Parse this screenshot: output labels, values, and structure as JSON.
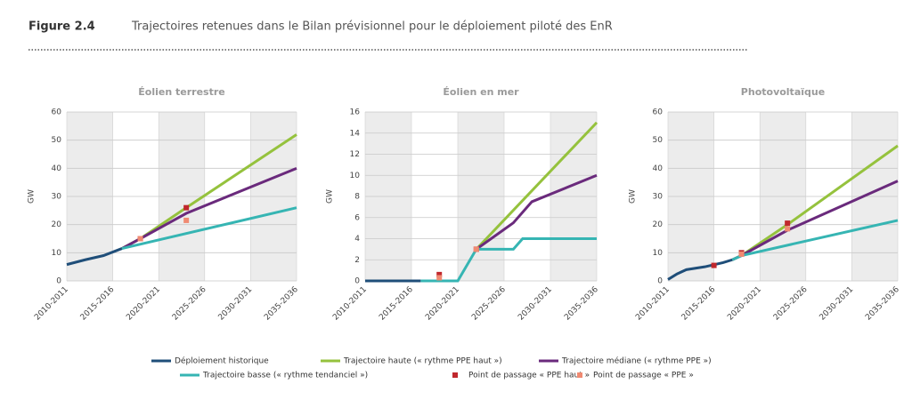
{
  "header": {
    "figure": "Figure 2.4",
    "title": "Trajectoires retenues dans le Bilan prévisionnel pour le déploiement piloté des EnR"
  },
  "chart_data": [
    {
      "type": "line",
      "title": "Éolien terrestre",
      "ylabel": "GW",
      "xlim": [
        2010,
        2035
      ],
      "ylim": [
        0,
        60
      ],
      "yticks": [
        0,
        10,
        20,
        30,
        40,
        50,
        60
      ],
      "xticks": [
        {
          "value": 2010,
          "label": "2010-2011"
        },
        {
          "value": 2015,
          "label": "2015-2016"
        },
        {
          "value": 2020,
          "label": "2020-2021"
        },
        {
          "value": 2025,
          "label": "2025-2026"
        },
        {
          "value": 2030,
          "label": "2030-2031"
        },
        {
          "value": 2035,
          "label": "2035-2036"
        }
      ],
      "series": [
        {
          "name": "Déploiement historique",
          "color": "#1f4e79",
          "type": "line",
          "x": [
            2010,
            2012,
            2014,
            2016
          ],
          "values": [
            5.8,
            7.5,
            9,
            11.5
          ]
        },
        {
          "name": "Trajectoire haute (« rythme PPE haut »)",
          "color": "#95c23d",
          "type": "line",
          "x": [
            2016,
            2018,
            2023,
            2035
          ],
          "values": [
            11.5,
            15,
            26,
            52
          ]
        },
        {
          "name": "Trajectoire médiane (« rythme PPE »)",
          "color": "#6a2a7c",
          "type": "line",
          "x": [
            2016,
            2018,
            2023,
            2035
          ],
          "values": [
            11.5,
            15,
            24,
            40
          ]
        },
        {
          "name": "Trajectoire basse (« rythme tendanciel »)",
          "color": "#36b5b3",
          "type": "line",
          "x": [
            2016,
            2035
          ],
          "values": [
            11.5,
            26
          ]
        },
        {
          "name": "Point de passage « PPE haut »",
          "color": "#c0282d",
          "type": "scatter",
          "x": [
            2018,
            2023
          ],
          "values": [
            15,
            26
          ]
        },
        {
          "name": "Point de passage « PPE »",
          "color": "#f08a72",
          "type": "scatter",
          "x": [
            2018,
            2023
          ],
          "values": [
            15,
            21.5
          ]
        }
      ]
    },
    {
      "type": "line",
      "title": "Éolien en mer",
      "ylabel": "GW",
      "xlim": [
        2010,
        2035
      ],
      "ylim": [
        0,
        16
      ],
      "yticks": [
        0,
        2,
        4,
        6,
        8,
        10,
        12,
        14,
        16
      ],
      "xticks": [
        {
          "value": 2010,
          "label": "2010-2011"
        },
        {
          "value": 2015,
          "label": "2015-2016"
        },
        {
          "value": 2020,
          "label": "2020-2021"
        },
        {
          "value": 2025,
          "label": "2025-2026"
        },
        {
          "value": 2030,
          "label": "2030-2031"
        },
        {
          "value": 2035,
          "label": "2035-2036"
        }
      ],
      "series": [
        {
          "x": [
            2010,
            2016
          ],
          "values": [
            0,
            0
          ]
        },
        {
          "x": [
            2022,
            2035
          ],
          "values": [
            3,
            15
          ]
        },
        {
          "x": [
            2022,
            2026,
            2028,
            2035
          ],
          "values": [
            3,
            5.5,
            7.5,
            10
          ]
        },
        {
          "x": [
            2016,
            2020,
            2022,
            2026,
            2027,
            2035
          ],
          "values": [
            0,
            0,
            3,
            3,
            4,
            4
          ]
        },
        {
          "x": [
            2018,
            2022
          ],
          "values": [
            0.6,
            3
          ]
        },
        {
          "x": [
            2018,
            2022
          ],
          "values": [
            0.3,
            3
          ]
        }
      ]
    },
    {
      "type": "line",
      "title": "Photovoltaïque",
      "ylabel": "GW",
      "xlim": [
        2010,
        2035
      ],
      "ylim": [
        0,
        60
      ],
      "yticks": [
        0,
        10,
        20,
        30,
        40,
        50,
        60
      ],
      "xticks": [
        {
          "value": 2010,
          "label": "2010-2011"
        },
        {
          "value": 2015,
          "label": "2015-2016"
        },
        {
          "value": 2020,
          "label": "2020-2021"
        },
        {
          "value": 2025,
          "label": "2025-2026"
        },
        {
          "value": 2030,
          "label": "2030-2031"
        },
        {
          "value": 2035,
          "label": "2035-2036"
        }
      ],
      "series": [
        {
          "x": [
            2010,
            2011,
            2012,
            2014,
            2016,
            2017
          ],
          "values": [
            0.5,
            2.5,
            4,
            5,
            6.5,
            7.5
          ]
        },
        {
          "x": [
            2017,
            2018,
            2023,
            2035
          ],
          "values": [
            7.5,
            9,
            20,
            48
          ]
        },
        {
          "x": [
            2017,
            2018,
            2023,
            2035
          ],
          "values": [
            7.5,
            9,
            18,
            35.5
          ]
        },
        {
          "x": [
            2017,
            2018,
            2035
          ],
          "values": [
            7.5,
            9,
            21.5
          ]
        },
        {
          "x": [
            2015,
            2018,
            2023
          ],
          "values": [
            5.5,
            10,
            20.5
          ]
        },
        {
          "x": [
            2018,
            2023
          ],
          "values": [
            9.5,
            18.5
          ]
        }
      ]
    }
  ]
}
